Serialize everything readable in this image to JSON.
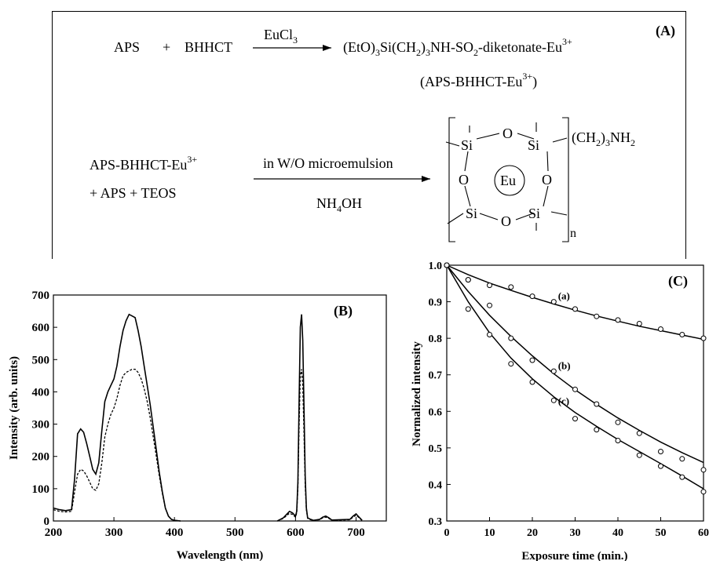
{
  "scheme": {
    "panel_label": "(A)",
    "reaction1": {
      "reactant_a": "APS",
      "plus": "+",
      "reactant_b": "BHHCT",
      "reagent": "EuCl",
      "reagent_sub": "3",
      "product_p1": "(EtO)",
      "product_p1_sub": "3",
      "product_p2": "Si(CH",
      "product_p2_sub": "2",
      "product_p3": ")",
      "product_p3_sub": "3",
      "product_p4": "NH-SO",
      "product_p4_sub": "2",
      "product_p5": "-diketonate-Eu",
      "product_sup": "3+",
      "product_name": "(APS-BHHCT-Eu",
      "product_name_sup": "3+",
      "product_name_close": ")"
    },
    "reaction2": {
      "reactant_line1": "APS-BHHCT-Eu",
      "reactant_line1_sup": "3+",
      "reactant_line2": "+  APS  +  TEOS",
      "condition_top": "in W/O microemulsion",
      "condition_bottom_p1": "NH",
      "condition_bottom_sub": "4",
      "condition_bottom_p2": "OH",
      "atom_si": "Si",
      "atom_o": "O",
      "atom_eu": "Eu",
      "side_group_p1": "(CH",
      "side_group_sub1": "2",
      "side_group_p2": ")",
      "side_group_sub2": "3",
      "side_group_p3": "NH",
      "side_group_sub3": "2",
      "repeat_n": "n"
    }
  },
  "chart_data": [
    {
      "type": "line",
      "panel_label": "(B)",
      "xlabel": "Wavelength (nm)",
      "ylabel": "Intensity (arb. units)",
      "xlim": [
        200,
        750
      ],
      "ylim": [
        0,
        700
      ],
      "xticks": [
        "200",
        "300",
        "400",
        "500",
        "600",
        "700"
      ],
      "yticks": [
        "0",
        "100",
        "200",
        "300",
        "400",
        "500",
        "600",
        "700"
      ],
      "series": [
        {
          "style": "solid",
          "x": [
            200,
            210,
            220,
            230,
            235,
            240,
            245,
            250,
            255,
            260,
            265,
            270,
            275,
            280,
            285,
            290,
            295,
            300,
            305,
            310,
            315,
            320,
            325,
            330,
            335,
            340,
            345,
            350,
            355,
            360,
            365,
            370,
            375,
            380,
            385,
            390,
            395,
            400,
            405,
            410
          ],
          "y": [
            40,
            35,
            32,
            35,
            130,
            270,
            285,
            275,
            240,
            200,
            160,
            145,
            180,
            280,
            370,
            400,
            420,
            440,
            480,
            540,
            590,
            620,
            640,
            635,
            630,
            590,
            540,
            480,
            420,
            360,
            290,
            220,
            150,
            90,
            40,
            15,
            5,
            2,
            1,
            0
          ]
        },
        {
          "style": "dashed",
          "x": [
            200,
            210,
            220,
            230,
            235,
            240,
            245,
            250,
            255,
            260,
            265,
            270,
            275,
            280,
            285,
            290,
            295,
            300,
            305,
            310,
            315,
            320,
            325,
            330,
            335,
            340,
            345,
            350,
            355,
            360,
            365,
            370,
            375,
            380,
            385,
            390,
            395,
            400,
            405,
            410
          ],
          "y": [
            35,
            30,
            28,
            30,
            90,
            145,
            160,
            155,
            140,
            120,
            100,
            95,
            115,
            180,
            260,
            300,
            330,
            350,
            380,
            420,
            450,
            460,
            465,
            470,
            470,
            460,
            440,
            410,
            370,
            320,
            260,
            200,
            140,
            85,
            40,
            15,
            5,
            2,
            1,
            0
          ]
        },
        {
          "style": "solid",
          "x": [
            570,
            575,
            580,
            585,
            590,
            595,
            600,
            602,
            604,
            606,
            608,
            610,
            612,
            614,
            616,
            618,
            620,
            625,
            630,
            640,
            645,
            650,
            655,
            660,
            690,
            695,
            700,
            705,
            710
          ],
          "y": [
            0,
            5,
            10,
            20,
            30,
            25,
            15,
            30,
            120,
            380,
            600,
            640,
            560,
            350,
            140,
            40,
            10,
            5,
            2,
            5,
            12,
            15,
            10,
            3,
            5,
            15,
            22,
            12,
            2
          ]
        },
        {
          "style": "dashed",
          "x": [
            570,
            575,
            580,
            585,
            590,
            595,
            600,
            602,
            604,
            606,
            608,
            610,
            612,
            614,
            616,
            618,
            620,
            625,
            630,
            640,
            645,
            650,
            655,
            660,
            690,
            695,
            700,
            705,
            710
          ],
          "y": [
            0,
            4,
            8,
            16,
            24,
            20,
            12,
            25,
            100,
            300,
            450,
            470,
            420,
            270,
            110,
            35,
            8,
            4,
            2,
            4,
            10,
            12,
            8,
            2,
            4,
            12,
            18,
            10,
            1
          ]
        }
      ]
    },
    {
      "type": "line",
      "panel_label": "(C)",
      "xlabel": "Exposure time (min.)",
      "ylabel": "Normalized intensity",
      "xlim": [
        0,
        60
      ],
      "ylim": [
        0.3,
        1.0
      ],
      "xticks": [
        "0",
        "10",
        "20",
        "30",
        "40",
        "50",
        "60"
      ],
      "yticks": [
        "0.3",
        "0.4",
        "0.5",
        "0.6",
        "0.7",
        "0.8",
        "0.9",
        "1.0"
      ],
      "series": [
        {
          "name": "(a)",
          "x": [
            0,
            5,
            10,
            15,
            20,
            25,
            30,
            35,
            40,
            45,
            50,
            55,
            60
          ],
          "y": [
            1.0,
            0.96,
            0.945,
            0.94,
            0.915,
            0.9,
            0.88,
            0.86,
            0.85,
            0.84,
            0.825,
            0.81,
            0.8
          ],
          "fit": [
            1.0,
            0.974,
            0.951,
            0.931,
            0.912,
            0.894,
            0.877,
            0.861,
            0.847,
            0.833,
            0.821,
            0.809,
            0.797
          ]
        },
        {
          "name": "(b)",
          "x": [
            0,
            5,
            10,
            15,
            20,
            25,
            30,
            35,
            40,
            45,
            50,
            55,
            60
          ],
          "y": [
            1.0,
            0.96,
            0.89,
            0.8,
            0.74,
            0.71,
            0.66,
            0.62,
            0.57,
            0.54,
            0.49,
            0.47,
            0.44
          ],
          "fit": [
            1.0,
            0.928,
            0.863,
            0.805,
            0.752,
            0.703,
            0.659,
            0.619,
            0.582,
            0.548,
            0.516,
            0.487,
            0.46
          ]
        },
        {
          "name": "(c)",
          "x": [
            0,
            5,
            10,
            15,
            20,
            25,
            30,
            35,
            40,
            45,
            50,
            55,
            60
          ],
          "y": [
            1.0,
            0.88,
            0.81,
            0.73,
            0.68,
            0.63,
            0.58,
            0.55,
            0.52,
            0.48,
            0.45,
            0.42,
            0.38
          ],
          "fit": [
            1.0,
            0.9,
            0.815,
            0.746,
            0.689,
            0.64,
            0.597,
            0.559,
            0.523,
            0.49,
            0.457,
            0.423,
            0.388
          ]
        }
      ]
    }
  ]
}
